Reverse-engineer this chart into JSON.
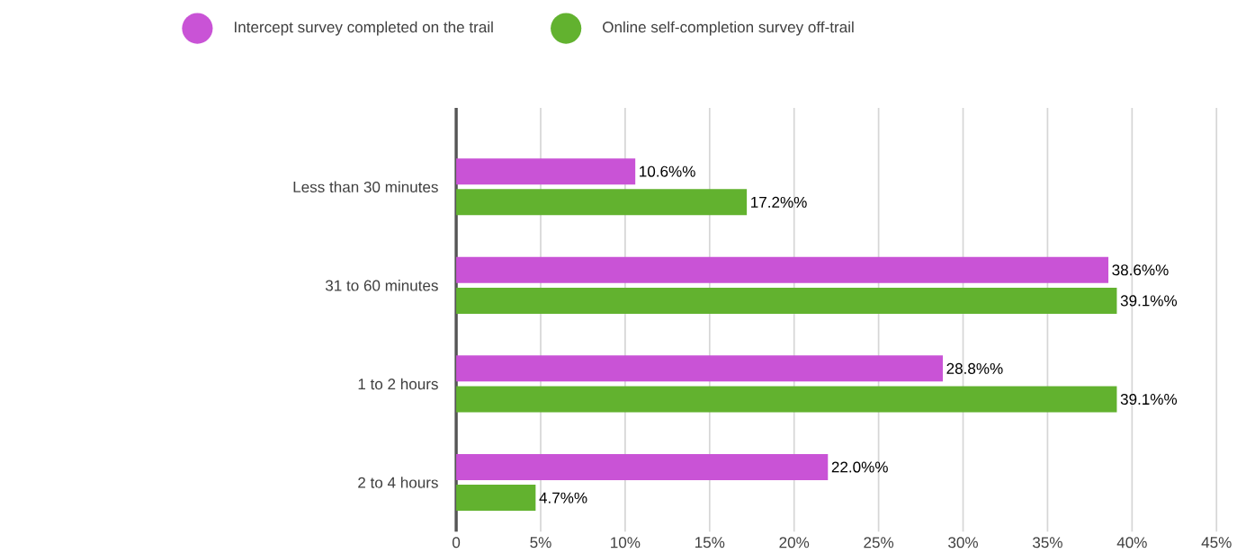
{
  "chart_data": {
    "type": "bar",
    "orientation": "horizontal",
    "categories": [
      "Less than 30 minutes",
      "31 to 60 minutes",
      "1 to 2 hours",
      "2 to 4 hours"
    ],
    "series": [
      {
        "name": "Intercept survey completed on the trail",
        "color": "#c953d6",
        "values": [
          10.6,
          38.6,
          28.8,
          22.0
        ],
        "value_labels": [
          "10.6%%",
          "38.6%%",
          "28.8%%",
          "22.0%%"
        ]
      },
      {
        "name": "Online self-completion survey off-trail",
        "color": "#62b22f",
        "values": [
          17.2,
          39.1,
          39.1,
          4.7
        ],
        "value_labels": [
          "17.2%%",
          "39.1%%",
          "39.1%%",
          "4.7%%"
        ]
      }
    ],
    "xlim": [
      0,
      45
    ],
    "xticks": [
      0,
      {
        "value": 5,
        "label": "5%"
      },
      {
        "value": 10,
        "label": "10%"
      },
      {
        "value": 15,
        "label": "15%"
      },
      {
        "value": 20,
        "label": "20%"
      },
      {
        "value": 25,
        "label": "25%"
      },
      {
        "value": 30,
        "label": "30%"
      },
      {
        "value": 35,
        "label": "35%"
      },
      {
        "value": 40,
        "label": "40%"
      },
      {
        "value": 45,
        "label": "45%"
      }
    ],
    "grid": "x",
    "legend": "top"
  }
}
